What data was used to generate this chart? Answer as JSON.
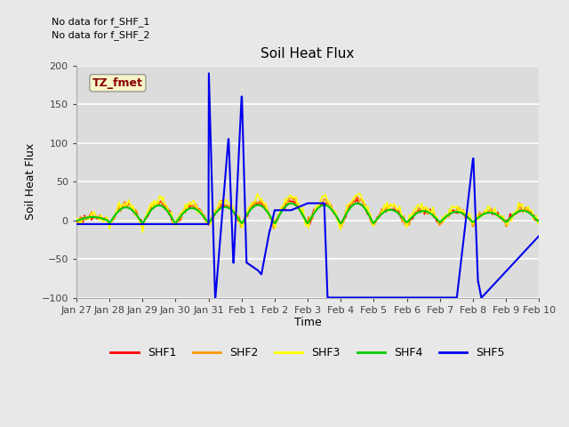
{
  "title": "Soil Heat Flux",
  "ylabel": "Soil Heat Flux",
  "xlabel": "Time",
  "no_data_text_1": "No data for f_SHF_1",
  "no_data_text_2": "No data for f_SHF_2",
  "tz_label": "TZ_fmet",
  "ylim": [
    -100,
    200
  ],
  "yticks": [
    -100,
    -50,
    0,
    50,
    100,
    150,
    200
  ],
  "bg_color": "#e8e8e8",
  "plot_bg_color": "#dcdcdc",
  "grid_color": "#f0f0f0",
  "series_colors": {
    "SHF1": "#ff0000",
    "SHF2": "#ff9900",
    "SHF3": "#ffff00",
    "SHF4": "#00cc00",
    "SHF5": "#0000ee"
  },
  "x_tick_labels": [
    "Jan 27",
    "Jan 28",
    "Jan 29",
    "Jan 30",
    "Jan 31",
    "Feb 1",
    "Feb 2",
    "Feb 3",
    "Feb 4",
    "Feb 5",
    "Feb 6",
    "Feb 7",
    "Feb 8",
    "Feb 9",
    "Feb 10"
  ],
  "SHF5_x": [
    0.0,
    4.0,
    4.01,
    4.3,
    4.31,
    4.6,
    4.61,
    5.0,
    5.01,
    5.25,
    5.26,
    5.5,
    5.51,
    5.75,
    5.76,
    6.0,
    6.01,
    6.3,
    6.31,
    8.0,
    8.01,
    8.25,
    8.26,
    8.5,
    8.51,
    9.0,
    9.01,
    11.5,
    11.51,
    12.0,
    12.01,
    12.25,
    12.26,
    14.0
  ],
  "SHF5_y": [
    -5,
    -5,
    190,
    -100,
    -100,
    105,
    105,
    -55,
    -55,
    160,
    160,
    -65,
    -65,
    -65,
    -65,
    -65,
    13,
    13,
    -13,
    -13,
    -13,
    22,
    22,
    -100,
    -100,
    -100,
    -100,
    -100,
    -100,
    80,
    80,
    -80,
    -100,
    -20
  ]
}
